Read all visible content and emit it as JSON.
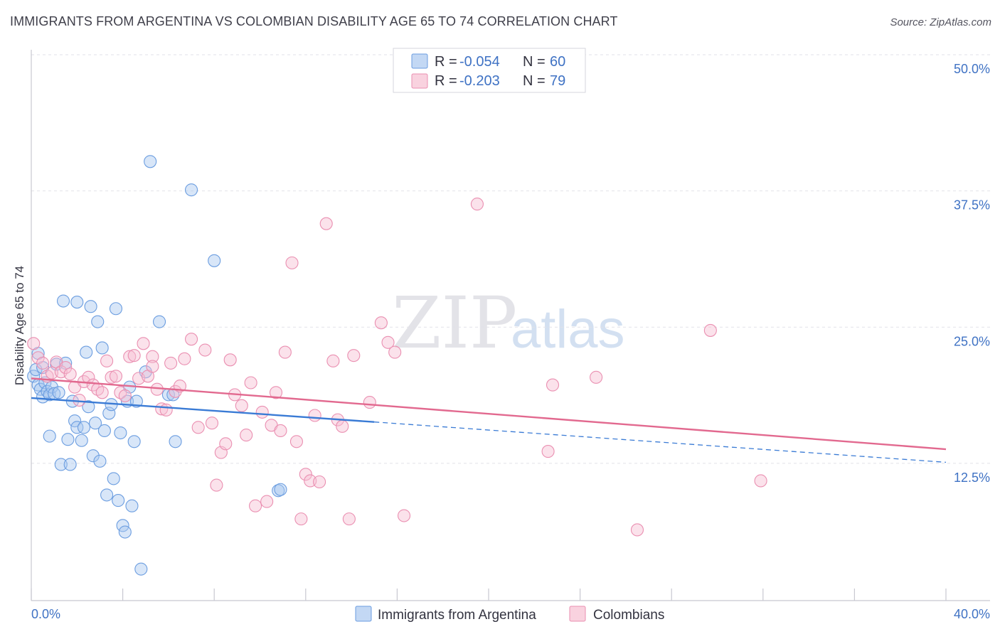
{
  "title": "IMMIGRANTS FROM ARGENTINA VS COLOMBIAN DISABILITY AGE 65 TO 74 CORRELATION CHART",
  "source": "Source: ZipAtlas.com",
  "watermark": {
    "zip": "ZIP",
    "atlas": "atlas"
  },
  "legend": {
    "r_label": "R =",
    "n_label": "N =",
    "rows": [
      {
        "r": "-0.054",
        "n": "60"
      },
      {
        "r": "-0.203",
        "n": "79"
      }
    ]
  },
  "chart_data": {
    "type": "scatter",
    "ylabel": "Disability Age 65 to 74",
    "xlim": [
      0,
      40
    ],
    "ylim": [
      2,
      52
    ],
    "x_tick_labels": [
      "0.0%",
      "40.0%"
    ],
    "y_ticks": [
      {
        "value": 50,
        "label": "50.0%"
      },
      {
        "value": 37.5,
        "label": "37.5%"
      },
      {
        "value": 25,
        "label": "25.0%"
      },
      {
        "value": 12.5,
        "label": "12.5%"
      }
    ],
    "grid": true,
    "legend_position": "top-center",
    "series": [
      {
        "name": "Immigrants from Argentina",
        "color": "#a9c8f0",
        "stroke": "#6b9de0",
        "trend": {
          "x0": 0,
          "y0": 19.8,
          "x1": 15,
          "y1": 17.6,
          "dash_to": 40,
          "dash_y": 13.9,
          "color": "#3a7bd5"
        },
        "points": [
          [
            0.1,
            21.8
          ],
          [
            0.2,
            22.4
          ],
          [
            0.3,
            21.0
          ],
          [
            0.4,
            20.6
          ],
          [
            0.5,
            19.9
          ],
          [
            0.6,
            21.2
          ],
          [
            0.7,
            20.4
          ],
          [
            0.8,
            20.1
          ],
          [
            0.9,
            20.8
          ],
          [
            1.0,
            20.2
          ],
          [
            1.1,
            22.9
          ],
          [
            1.2,
            20.3
          ],
          [
            0.8,
            16.3
          ],
          [
            1.3,
            13.7
          ],
          [
            1.4,
            28.7
          ],
          [
            1.5,
            23.0
          ],
          [
            1.6,
            16.0
          ],
          [
            1.7,
            13.7
          ],
          [
            1.8,
            19.5
          ],
          [
            1.9,
            17.7
          ],
          [
            2.0,
            17.1
          ],
          [
            2.0,
            28.6
          ],
          [
            2.2,
            15.9
          ],
          [
            2.3,
            17.1
          ],
          [
            2.4,
            24.0
          ],
          [
            2.5,
            19.0
          ],
          [
            2.6,
            28.2
          ],
          [
            2.7,
            14.5
          ],
          [
            2.8,
            17.5
          ],
          [
            2.9,
            26.8
          ],
          [
            3.0,
            14.0
          ],
          [
            3.1,
            24.4
          ],
          [
            3.2,
            16.8
          ],
          [
            3.3,
            10.9
          ],
          [
            3.4,
            18.4
          ],
          [
            3.5,
            19.2
          ],
          [
            3.6,
            12.4
          ],
          [
            3.7,
            28.0
          ],
          [
            3.8,
            10.4
          ],
          [
            3.9,
            16.6
          ],
          [
            4.0,
            8.1
          ],
          [
            4.1,
            7.5
          ],
          [
            4.2,
            19.5
          ],
          [
            4.3,
            20.8
          ],
          [
            4.4,
            9.9
          ],
          [
            4.5,
            15.8
          ],
          [
            4.6,
            19.5
          ],
          [
            4.8,
            4.1
          ],
          [
            5.0,
            22.2
          ],
          [
            5.2,
            41.5
          ],
          [
            5.6,
            26.8
          ],
          [
            6.0,
            20.1
          ],
          [
            6.2,
            20.1
          ],
          [
            6.3,
            15.8
          ],
          [
            7.0,
            38.9
          ],
          [
            8.0,
            32.4
          ],
          [
            10.8,
            11.3
          ],
          [
            10.9,
            11.4
          ],
          [
            0.3,
            23.9
          ],
          [
            0.5,
            22.6
          ]
        ]
      },
      {
        "name": "Colombians",
        "color": "#f6bfd2",
        "stroke": "#ea8fb1",
        "trend": {
          "x0": 0,
          "y0": 21.6,
          "x1": 40,
          "y1": 15.1,
          "color": "#e2698f"
        },
        "points": [
          [
            0.1,
            24.8
          ],
          [
            0.3,
            23.5
          ],
          [
            0.5,
            23.0
          ],
          [
            0.7,
            21.8
          ],
          [
            0.9,
            22.1
          ],
          [
            1.1,
            23.1
          ],
          [
            1.3,
            22.2
          ],
          [
            1.5,
            22.6
          ],
          [
            1.7,
            22.0
          ],
          [
            1.9,
            20.8
          ],
          [
            2.1,
            19.6
          ],
          [
            2.3,
            21.3
          ],
          [
            2.5,
            21.7
          ],
          [
            2.7,
            21.0
          ],
          [
            2.9,
            20.6
          ],
          [
            3.1,
            20.3
          ],
          [
            3.3,
            23.2
          ],
          [
            3.5,
            21.7
          ],
          [
            3.7,
            21.8
          ],
          [
            3.9,
            20.3
          ],
          [
            4.1,
            20.0
          ],
          [
            4.3,
            23.6
          ],
          [
            4.5,
            23.7
          ],
          [
            4.7,
            21.6
          ],
          [
            4.9,
            24.8
          ],
          [
            5.1,
            21.8
          ],
          [
            5.3,
            23.6
          ],
          [
            5.5,
            20.6
          ],
          [
            5.7,
            18.8
          ],
          [
            5.9,
            18.7
          ],
          [
            6.1,
            23.0
          ],
          [
            6.3,
            20.4
          ],
          [
            6.5,
            20.9
          ],
          [
            6.7,
            23.4
          ],
          [
            7.0,
            25.2
          ],
          [
            7.3,
            17.1
          ],
          [
            7.6,
            24.2
          ],
          [
            7.9,
            17.5
          ],
          [
            8.1,
            11.8
          ],
          [
            8.3,
            14.8
          ],
          [
            8.5,
            15.6
          ],
          [
            8.7,
            23.3
          ],
          [
            8.9,
            20.1
          ],
          [
            9.2,
            19.1
          ],
          [
            9.4,
            16.4
          ],
          [
            9.6,
            21.2
          ],
          [
            9.8,
            9.9
          ],
          [
            10.1,
            18.5
          ],
          [
            10.3,
            10.3
          ],
          [
            10.5,
            17.3
          ],
          [
            10.7,
            20.3
          ],
          [
            10.9,
            16.8
          ],
          [
            11.1,
            24.0
          ],
          [
            11.4,
            32.2
          ],
          [
            11.6,
            15.8
          ],
          [
            11.8,
            8.7
          ],
          [
            12.0,
            12.8
          ],
          [
            12.2,
            12.2
          ],
          [
            12.4,
            18.2
          ],
          [
            12.6,
            12.1
          ],
          [
            12.9,
            35.8
          ],
          [
            13.2,
            23.2
          ],
          [
            13.4,
            17.8
          ],
          [
            13.6,
            17.2
          ],
          [
            13.9,
            8.7
          ],
          [
            14.1,
            23.7
          ],
          [
            14.8,
            19.4
          ],
          [
            15.3,
            26.7
          ],
          [
            15.6,
            24.9
          ],
          [
            15.9,
            24.0
          ],
          [
            16.3,
            9.0
          ],
          [
            19.5,
            37.6
          ],
          [
            22.6,
            14.9
          ],
          [
            22.8,
            21.0
          ],
          [
            24.7,
            21.7
          ],
          [
            26.5,
            7.7
          ],
          [
            29.7,
            26.0
          ],
          [
            31.9,
            12.2
          ],
          [
            5.3,
            22.7
          ]
        ]
      }
    ]
  }
}
